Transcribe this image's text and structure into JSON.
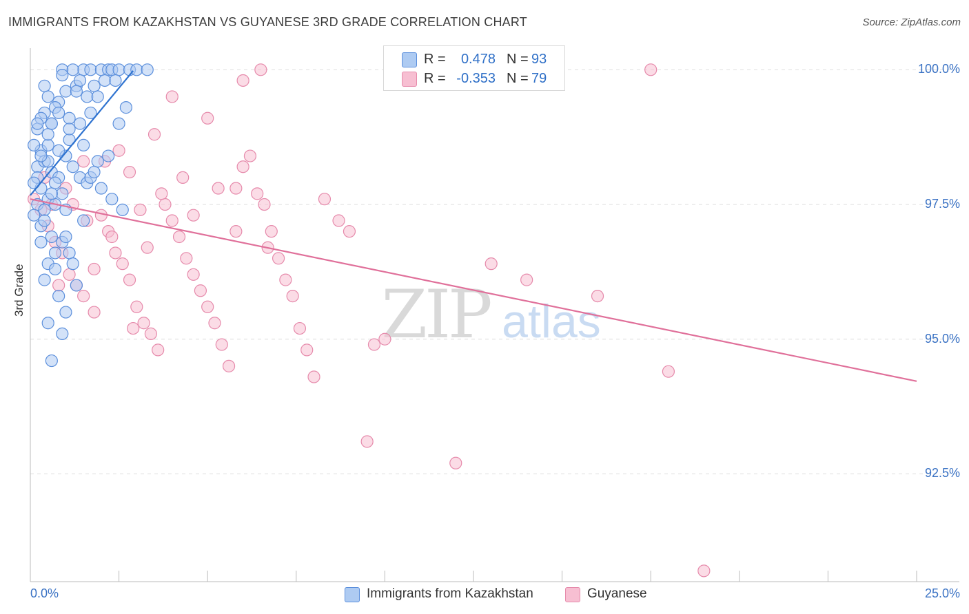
{
  "title": "IMMIGRANTS FROM KAZAKHSTAN VS GUYANESE 3RD GRADE CORRELATION CHART",
  "source": "Source: ZipAtlas.com",
  "watermark": {
    "zip": "ZIP",
    "atlas": "atlas"
  },
  "legend": {
    "series": [
      {
        "r_label": "R =",
        "r_value": "0.478",
        "n_label": "N =",
        "n_value": "93"
      },
      {
        "r_label": "R =",
        "r_value": "-0.353",
        "n_label": "N =",
        "n_value": "79"
      }
    ]
  },
  "colors": {
    "blue_fill": "#aecbf2",
    "blue_stroke": "#5b8fdc",
    "blue_line": "#2f73d0",
    "pink_fill": "#f7bfd2",
    "pink_stroke": "#e68aab",
    "pink_line": "#e0709a",
    "grid": "#dddddd",
    "axis_text": "#3a72c4"
  },
  "chart_data": {
    "type": "scatter",
    "title": "IMMIGRANTS FROM KAZAKHSTAN VS GUYANESE 3RD GRADE CORRELATION CHART",
    "xlabel": "",
    "ylabel": "3rd Grade",
    "xlim": [
      0,
      25
    ],
    "ylim": [
      90.5,
      100.4
    ],
    "x_tick_labels": {
      "min": "0.0%",
      "max": "25.0%"
    },
    "y_ticks": [
      100.0,
      97.5,
      95.0,
      92.5
    ],
    "y_tick_labels": [
      "100.0%",
      "97.5%",
      "95.0%",
      "92.5%"
    ],
    "series": [
      {
        "name": "Immigrants from Kazakhstan",
        "color": "#5b8fdc",
        "trend": {
          "x": [
            0.0,
            2.9
          ],
          "y": [
            97.67,
            99.98
          ]
        },
        "points": [
          [
            0.2,
            98.9
          ],
          [
            0.3,
            98.5
          ],
          [
            0.4,
            99.2
          ],
          [
            0.5,
            98.6
          ],
          [
            0.6,
            99.0
          ],
          [
            0.8,
            99.4
          ],
          [
            1.0,
            99.6
          ],
          [
            1.1,
            99.1
          ],
          [
            1.3,
            99.7
          ],
          [
            1.5,
            100.0
          ],
          [
            1.7,
            100.0
          ],
          [
            1.8,
            99.7
          ],
          [
            2.0,
            100.0
          ],
          [
            2.2,
            100.0
          ],
          [
            2.3,
            100.0
          ],
          [
            2.5,
            100.0
          ],
          [
            2.8,
            100.0
          ],
          [
            3.0,
            100.0
          ],
          [
            3.3,
            100.0
          ],
          [
            0.9,
            100.0
          ],
          [
            1.2,
            100.0
          ],
          [
            1.4,
            99.8
          ],
          [
            1.6,
            99.5
          ],
          [
            0.7,
            99.3
          ],
          [
            0.5,
            99.5
          ],
          [
            0.3,
            99.1
          ],
          [
            0.1,
            98.6
          ],
          [
            0.2,
            98.2
          ],
          [
            0.4,
            98.3
          ],
          [
            0.6,
            98.1
          ],
          [
            0.8,
            98.0
          ],
          [
            1.0,
            98.4
          ],
          [
            1.2,
            98.2
          ],
          [
            1.4,
            98.0
          ],
          [
            1.6,
            97.9
          ],
          [
            0.3,
            97.8
          ],
          [
            0.5,
            97.6
          ],
          [
            0.7,
            97.5
          ],
          [
            0.9,
            97.7
          ],
          [
            0.2,
            97.5
          ],
          [
            0.4,
            97.4
          ],
          [
            0.1,
            97.3
          ],
          [
            0.3,
            97.1
          ],
          [
            0.6,
            96.9
          ],
          [
            0.9,
            96.8
          ],
          [
            1.1,
            96.6
          ],
          [
            0.5,
            96.4
          ],
          [
            0.7,
            96.3
          ],
          [
            0.4,
            96.1
          ],
          [
            1.3,
            96.0
          ],
          [
            0.8,
            95.8
          ],
          [
            1.0,
            95.5
          ],
          [
            0.5,
            95.3
          ],
          [
            0.9,
            95.1
          ],
          [
            0.6,
            94.6
          ],
          [
            1.7,
            98.0
          ],
          [
            2.0,
            97.8
          ],
          [
            2.3,
            97.6
          ],
          [
            2.6,
            97.4
          ],
          [
            1.9,
            98.3
          ],
          [
            2.5,
            99.0
          ],
          [
            2.7,
            99.3
          ],
          [
            0.2,
            98.0
          ],
          [
            0.5,
            98.3
          ],
          [
            0.8,
            98.5
          ],
          [
            1.1,
            98.7
          ],
          [
            1.4,
            99.0
          ],
          [
            1.7,
            99.2
          ],
          [
            0.1,
            97.9
          ],
          [
            0.6,
            97.7
          ],
          [
            1.0,
            97.4
          ],
          [
            1.5,
            97.2
          ],
          [
            0.3,
            96.8
          ],
          [
            0.7,
            96.6
          ],
          [
            1.2,
            96.4
          ],
          [
            0.4,
            99.7
          ],
          [
            0.9,
            99.9
          ],
          [
            1.3,
            99.6
          ],
          [
            2.1,
            99.8
          ],
          [
            0.2,
            99.0
          ],
          [
            0.5,
            98.8
          ],
          [
            0.8,
            99.2
          ],
          [
            1.9,
            99.5
          ],
          [
            2.4,
            99.8
          ],
          [
            0.6,
            99.0
          ],
          [
            1.1,
            98.9
          ],
          [
            0.3,
            98.4
          ],
          [
            1.5,
            98.6
          ],
          [
            0.7,
            97.9
          ],
          [
            1.8,
            98.1
          ],
          [
            2.2,
            98.4
          ],
          [
            0.4,
            97.2
          ],
          [
            1.0,
            96.9
          ]
        ]
      },
      {
        "name": "Guyanese",
        "color": "#e68aab",
        "trend": {
          "x": [
            0.0,
            25.0
          ],
          "y": [
            97.6,
            94.22
          ]
        },
        "points": [
          [
            0.1,
            97.6
          ],
          [
            0.3,
            97.4
          ],
          [
            0.5,
            97.1
          ],
          [
            0.7,
            96.8
          ],
          [
            0.9,
            96.6
          ],
          [
            1.1,
            96.2
          ],
          [
            1.3,
            96.0
          ],
          [
            1.5,
            95.8
          ],
          [
            1.8,
            95.5
          ],
          [
            2.0,
            97.3
          ],
          [
            2.2,
            97.0
          ],
          [
            2.4,
            96.6
          ],
          [
            2.6,
            96.4
          ],
          [
            2.8,
            96.1
          ],
          [
            3.0,
            95.6
          ],
          [
            3.2,
            95.3
          ],
          [
            3.4,
            95.1
          ],
          [
            3.6,
            94.8
          ],
          [
            3.8,
            97.5
          ],
          [
            4.0,
            97.2
          ],
          [
            4.2,
            96.9
          ],
          [
            4.4,
            96.5
          ],
          [
            4.6,
            96.2
          ],
          [
            4.8,
            95.9
          ],
          [
            5.0,
            95.6
          ],
          [
            5.2,
            95.3
          ],
          [
            5.4,
            94.9
          ],
          [
            5.6,
            94.5
          ],
          [
            5.8,
            97.8
          ],
          [
            6.0,
            98.2
          ],
          [
            6.2,
            98.4
          ],
          [
            6.4,
            97.7
          ],
          [
            6.6,
            97.5
          ],
          [
            6.8,
            97.0
          ],
          [
            7.0,
            96.5
          ],
          [
            7.2,
            96.1
          ],
          [
            7.4,
            95.8
          ],
          [
            7.6,
            95.2
          ],
          [
            7.8,
            94.8
          ],
          [
            8.0,
            94.3
          ],
          [
            8.3,
            97.6
          ],
          [
            8.7,
            97.2
          ],
          [
            9.0,
            97.0
          ],
          [
            9.5,
            93.1
          ],
          [
            9.7,
            94.9
          ],
          [
            10.0,
            95.0
          ],
          [
            12.0,
            92.7
          ],
          [
            13.0,
            96.4
          ],
          [
            14.0,
            96.1
          ],
          [
            16.0,
            95.8
          ],
          [
            18.0,
            94.4
          ],
          [
            19.0,
            90.7
          ],
          [
            6.0,
            99.8
          ],
          [
            6.5,
            100.0
          ],
          [
            17.5,
            100.0
          ],
          [
            4.0,
            99.5
          ],
          [
            5.0,
            99.1
          ],
          [
            3.5,
            98.8
          ],
          [
            2.5,
            98.5
          ],
          [
            1.5,
            98.3
          ],
          [
            2.8,
            98.1
          ],
          [
            4.3,
            98.0
          ],
          [
            5.3,
            97.8
          ],
          [
            1.0,
            97.8
          ],
          [
            0.6,
            97.5
          ],
          [
            1.6,
            97.2
          ],
          [
            2.3,
            96.9
          ],
          [
            3.3,
            96.7
          ],
          [
            1.8,
            96.3
          ],
          [
            0.8,
            96.0
          ],
          [
            2.9,
            95.2
          ],
          [
            4.6,
            97.3
          ],
          [
            5.8,
            97.0
          ],
          [
            6.7,
            96.7
          ],
          [
            1.2,
            97.5
          ],
          [
            3.7,
            97.7
          ],
          [
            0.4,
            98.0
          ],
          [
            2.1,
            98.3
          ],
          [
            3.1,
            97.4
          ]
        ]
      }
    ]
  },
  "bottom_legend": [
    "Immigrants from Kazakhstan",
    "Guyanese"
  ]
}
